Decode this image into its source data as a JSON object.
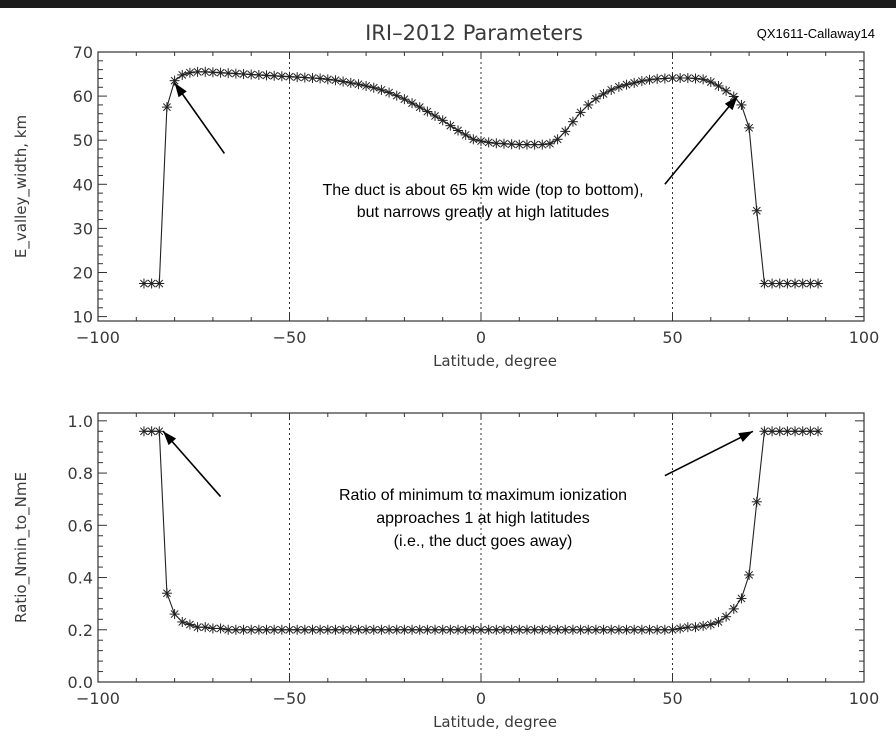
{
  "figure": {
    "title": "IRI–2012 Parameters",
    "id_label": "QX1611-Callaway14"
  },
  "chart_data": [
    {
      "type": "line",
      "marker": "asterisk",
      "xlabel": "Latitude, degree",
      "ylabel": "E_valley_width, km",
      "xlim": [
        -100,
        100
      ],
      "ylim": [
        9,
        70
      ],
      "xticks": [
        -100,
        -50,
        0,
        50,
        100
      ],
      "yticks": [
        10,
        20,
        30,
        40,
        50,
        60,
        70
      ],
      "xtick_labels": [
        "−100",
        "−50",
        "0",
        "50",
        "100"
      ],
      "ytick_labels": [
        "10",
        "20",
        "30",
        "40",
        "50",
        "60",
        "70"
      ],
      "vlines": [
        -50,
        0,
        50
      ],
      "x": [
        -88,
        -86,
        -84,
        -82,
        -80,
        -78,
        -76,
        -74,
        -72,
        -70,
        -68,
        -66,
        -64,
        -62,
        -60,
        -58,
        -56,
        -54,
        -52,
        -50,
        -48,
        -46,
        -44,
        -42,
        -40,
        -38,
        -36,
        -34,
        -32,
        -30,
        -28,
        -26,
        -24,
        -22,
        -20,
        -18,
        -16,
        -14,
        -12,
        -10,
        -8,
        -6,
        -4,
        -2,
        0,
        2,
        4,
        6,
        8,
        10,
        12,
        14,
        16,
        18,
        20,
        22,
        24,
        26,
        28,
        30,
        32,
        34,
        36,
        38,
        40,
        42,
        44,
        46,
        48,
        50,
        52,
        54,
        56,
        58,
        60,
        62,
        64,
        66,
        68,
        70,
        72,
        74,
        76,
        78,
        80,
        82,
        84,
        86,
        88
      ],
      "y": [
        17.5,
        17.5,
        17.5,
        57.5,
        63.5,
        64.8,
        65.3,
        65.5,
        65.5,
        65.4,
        65.3,
        65.2,
        65.1,
        65.0,
        64.9,
        64.8,
        64.7,
        64.6,
        64.5,
        64.4,
        64.3,
        64.2,
        64.1,
        64.0,
        63.8,
        63.6,
        63.3,
        63.0,
        62.7,
        62.3,
        61.9,
        61.4,
        60.8,
        60.1,
        59.3,
        58.4,
        57.5,
        56.5,
        55.5,
        54.5,
        53.3,
        52.2,
        51.2,
        50.2,
        49.8,
        49.5,
        49.3,
        49.2,
        49.1,
        49.0,
        49.0,
        49.0,
        49.0,
        49.2,
        50.2,
        52.0,
        54.2,
        56.3,
        58.0,
        59.4,
        60.5,
        61.4,
        62.1,
        62.6,
        63.0,
        63.4,
        63.7,
        63.9,
        64.0,
        64.1,
        64.1,
        64.1,
        64.0,
        63.8,
        63.2,
        62.3,
        61.2,
        59.9,
        58.0,
        52.8,
        34.0,
        17.5,
        17.5,
        17.5,
        17.5,
        17.5,
        17.5,
        17.5,
        17.5
      ],
      "annotation": {
        "lines": [
          "The duct is about 65 km wide (top to bottom),",
          "but narrows greatly at high latitudes"
        ],
        "arrows": [
          {
            "from": [
              -67,
              47
            ],
            "to": [
              -80,
              63
            ]
          },
          {
            "from": [
              48,
              40
            ],
            "to": [
              67,
              60
            ]
          }
        ]
      }
    },
    {
      "type": "line",
      "marker": "asterisk",
      "xlabel": "Latitude, degree",
      "ylabel": "Ratio_Nmin_to_NmE",
      "xlim": [
        -100,
        100
      ],
      "ylim": [
        0.0,
        1.03
      ],
      "xticks": [
        -100,
        -50,
        0,
        50,
        100
      ],
      "yticks": [
        0.0,
        0.2,
        0.4,
        0.6,
        0.8,
        1.0
      ],
      "xtick_labels": [
        "−100",
        "−50",
        "0",
        "50",
        "100"
      ],
      "ytick_labels": [
        "0.0",
        "0.2",
        "0.4",
        "0.6",
        "0.8",
        "1.0"
      ],
      "vlines": [
        -50,
        0,
        50
      ],
      "x": [
        -88,
        -86,
        -84,
        -82,
        -80,
        -78,
        -76,
        -74,
        -72,
        -70,
        -68,
        -66,
        -64,
        -62,
        -60,
        -58,
        -56,
        -54,
        -52,
        -50,
        -48,
        -46,
        -44,
        -42,
        -40,
        -38,
        -36,
        -34,
        -32,
        -30,
        -28,
        -26,
        -24,
        -22,
        -20,
        -18,
        -16,
        -14,
        -12,
        -10,
        -8,
        -6,
        -4,
        -2,
        0,
        2,
        4,
        6,
        8,
        10,
        12,
        14,
        16,
        18,
        20,
        22,
        24,
        26,
        28,
        30,
        32,
        34,
        36,
        38,
        40,
        42,
        44,
        46,
        48,
        50,
        52,
        54,
        56,
        58,
        60,
        62,
        64,
        66,
        68,
        70,
        72,
        74,
        76,
        78,
        80,
        82,
        84,
        86,
        88
      ],
      "y": [
        0.96,
        0.96,
        0.96,
        0.34,
        0.26,
        0.23,
        0.22,
        0.21,
        0.21,
        0.205,
        0.205,
        0.2,
        0.2,
        0.2,
        0.2,
        0.2,
        0.2,
        0.2,
        0.2,
        0.2,
        0.2,
        0.2,
        0.2,
        0.2,
        0.2,
        0.2,
        0.2,
        0.2,
        0.2,
        0.2,
        0.2,
        0.2,
        0.2,
        0.2,
        0.2,
        0.2,
        0.2,
        0.2,
        0.2,
        0.2,
        0.2,
        0.2,
        0.2,
        0.2,
        0.2,
        0.2,
        0.2,
        0.2,
        0.2,
        0.2,
        0.2,
        0.2,
        0.2,
        0.2,
        0.2,
        0.2,
        0.2,
        0.2,
        0.2,
        0.2,
        0.2,
        0.2,
        0.2,
        0.2,
        0.2,
        0.2,
        0.2,
        0.2,
        0.2,
        0.2,
        0.205,
        0.21,
        0.21,
        0.215,
        0.22,
        0.23,
        0.25,
        0.28,
        0.32,
        0.41,
        0.69,
        0.96,
        0.96,
        0.96,
        0.96,
        0.96,
        0.96,
        0.96,
        0.96
      ],
      "annotation": {
        "lines": [
          "Ratio of minimum to maximum ionization",
          "approaches 1 at high latitudes",
          "(i.e., the duct goes away)"
        ],
        "arrows": [
          {
            "from": [
              -68,
              0.71
            ],
            "to": [
              -83,
              0.96
            ]
          },
          {
            "from": [
              48,
              0.79
            ],
            "to": [
              71,
              0.96
            ]
          }
        ]
      }
    }
  ]
}
